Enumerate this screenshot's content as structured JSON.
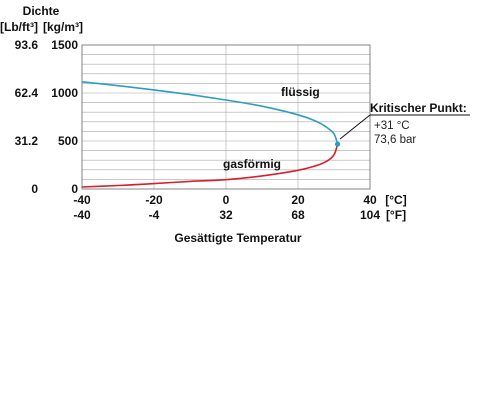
{
  "chart_data": {
    "type": "line",
    "header_left": "Dichte",
    "unit_left": "[Lb/ft³]",
    "unit_right": "[kg/m³]",
    "xlabel": "Gesättigte Temperatur",
    "x_unit_c": "[°C]",
    "x_unit_f": "[°F]",
    "x_ticks_c": [
      "-40",
      "-20",
      "0",
      "20",
      "40"
    ],
    "x_ticks_f": [
      "-40",
      "-4",
      "32",
      "68",
      "104"
    ],
    "x_tick_values": [
      -40,
      -20,
      0,
      20,
      40
    ],
    "y_ticks_kg": [
      "0",
      "500",
      "1000",
      "1500"
    ],
    "y_ticks_lb": [
      "0",
      "31.2",
      "62.4",
      "93.6"
    ],
    "y_tick_values": [
      0,
      500,
      1000,
      1500
    ],
    "xlim": [
      -40,
      40
    ],
    "ylim": [
      0,
      1500
    ],
    "y_grid_step": 100,
    "grid": true,
    "series": [
      {
        "name": "flüssig",
        "color": "#2a9fc0",
        "x": [
          -40,
          -30,
          -20,
          -10,
          0,
          10,
          20,
          25,
          28,
          30,
          31
        ],
        "values": [
          1117,
          1076,
          1032,
          983,
          927,
          862,
          773,
          706,
          642,
          575,
          468
        ]
      },
      {
        "name": "gasförmig",
        "color": "#d8202c",
        "x": [
          -40,
          -30,
          -20,
          -10,
          0,
          10,
          20,
          25,
          28,
          30,
          31
        ],
        "values": [
          21,
          36,
          56,
          79,
          97,
          136,
          195,
          243,
          290,
          356,
          468
        ]
      }
    ],
    "critical_point": {
      "x": 31,
      "y": 468,
      "title": "Kritischer Punkt:",
      "temperature": "+31 °C",
      "pressure": "73,6 bar"
    }
  }
}
